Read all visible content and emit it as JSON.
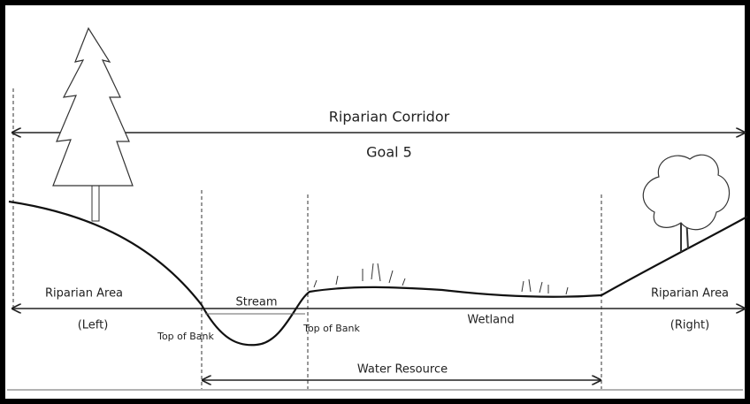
{
  "title": "Riparian Corridor",
  "subtitle": "Goal 5",
  "labels": {
    "riparian_left": "Riparian Area",
    "left": "(Left)",
    "stream": "Stream",
    "top_of_bank_left": "Top of Bank",
    "top_of_bank_right": "Top of Bank",
    "wetland": "Wetland",
    "riparian_right": "Riparian Area",
    "right": "(Right)",
    "water_resource": "Water Resource"
  }
}
